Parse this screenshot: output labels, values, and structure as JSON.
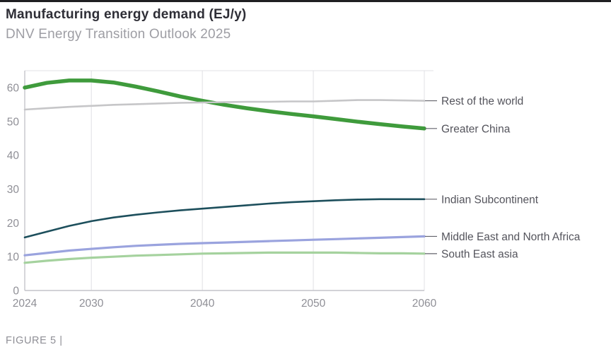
{
  "header": {
    "title": "Manufacturing energy demand (EJ/y)",
    "subtitle": "DNV Energy Transition Outlook 2025"
  },
  "footer": {
    "figure_caption": "FIGURE 5 |"
  },
  "colors": {
    "top_border": "#1f1f22",
    "grid": "#e0e0e4",
    "axis": "#c4c4ca",
    "tick_text": "#8f8f96",
    "label_text": "#54545c",
    "leader_tick": "#63636b"
  },
  "chart_data": {
    "type": "line",
    "title": "Manufacturing energy demand (EJ/y)",
    "subtitle": "DNV Energy Transition Outlook 2025",
    "xlabel": "",
    "ylabel": "EJ/y",
    "xlim": [
      2024,
      2060
    ],
    "ylim": [
      0,
      65
    ],
    "x_ticks": [
      2024,
      2030,
      2040,
      2050,
      2060
    ],
    "y_ticks": [
      0,
      10,
      20,
      30,
      40,
      50,
      60
    ],
    "grid": "vertical-only",
    "legend_position": "right-end-labels",
    "x": [
      2024,
      2026,
      2028,
      2030,
      2032,
      2034,
      2036,
      2038,
      2040,
      2042,
      2044,
      2046,
      2048,
      2050,
      2052,
      2054,
      2056,
      2058,
      2060
    ],
    "series": [
      {
        "name": "Rest of the world",
        "color": "#c6c6c8",
        "width": 2.6,
        "values": [
          53.5,
          53.9,
          54.3,
          54.6,
          54.9,
          55.1,
          55.3,
          55.5,
          55.6,
          55.7,
          55.8,
          55.8,
          55.9,
          55.9,
          56.1,
          56.3,
          56.3,
          56.2,
          56.1
        ]
      },
      {
        "name": "Greater China",
        "color": "#3f9b3c",
        "width": 5.5,
        "values": [
          60,
          61.4,
          62.1,
          62.1,
          61.5,
          60.3,
          58.9,
          57.4,
          56.1,
          54.9,
          53.9,
          53.0,
          52.2,
          51.5,
          50.7,
          49.9,
          49.2,
          48.5,
          47.9
        ]
      },
      {
        "name": "Indian Subcontinent",
        "color": "#1d4f5c",
        "width": 2.6,
        "values": [
          15.7,
          17.4,
          19.1,
          20.5,
          21.6,
          22.4,
          23.1,
          23.7,
          24.2,
          24.7,
          25.2,
          25.7,
          26.1,
          26.4,
          26.7,
          26.9,
          27.0,
          27.0,
          27.0
        ]
      },
      {
        "name": "Middle East and North Africa",
        "color": "#9aa3de",
        "width": 3.2,
        "values": [
          10.4,
          11.1,
          11.8,
          12.3,
          12.8,
          13.2,
          13.5,
          13.8,
          14.0,
          14.2,
          14.4,
          14.6,
          14.8,
          15.0,
          15.2,
          15.4,
          15.6,
          15.8,
          16.0
        ]
      },
      {
        "name": "South East asia",
        "color": "#a5d29e",
        "width": 3.2,
        "values": [
          8.2,
          8.8,
          9.3,
          9.7,
          10.0,
          10.3,
          10.5,
          10.7,
          10.9,
          11.0,
          11.1,
          11.2,
          11.2,
          11.2,
          11.2,
          11.1,
          11.0,
          11.0,
          10.9
        ]
      }
    ]
  }
}
